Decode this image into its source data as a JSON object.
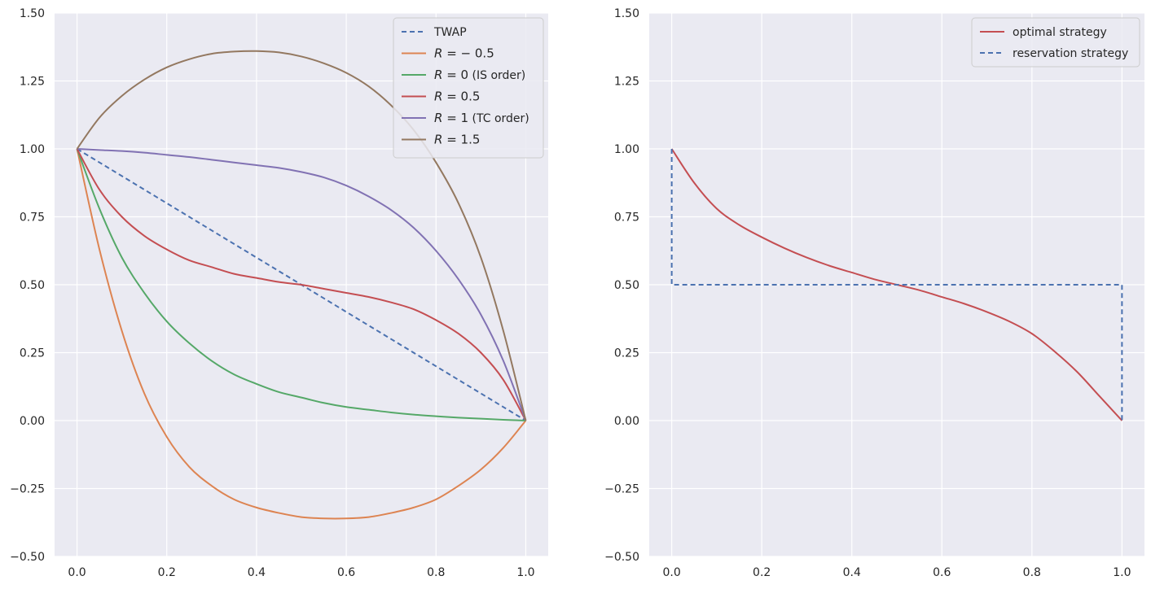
{
  "chart_data": [
    {
      "type": "line",
      "title": "",
      "xlabel": "",
      "ylabel": "",
      "xlim": [
        -0.05,
        1.05
      ],
      "ylim": [
        -0.5,
        1.5
      ],
      "x_ticks": [
        "0.0",
        "0.2",
        "0.4",
        "0.6",
        "0.8",
        "1.0"
      ],
      "y_ticks": [
        "−0.50",
        "−0.25",
        "0.00",
        "0.25",
        "0.50",
        "0.75",
        "1.00",
        "1.25",
        "1.50"
      ],
      "grid": true,
      "background": "#eaeaf2",
      "legend_position": "top-right",
      "x": [
        0.0,
        0.05,
        0.1,
        0.15,
        0.2,
        0.25,
        0.3,
        0.35,
        0.4,
        0.45,
        0.5,
        0.55,
        0.6,
        0.65,
        0.7,
        0.75,
        0.8,
        0.85,
        0.9,
        0.95,
        1.0
      ],
      "series": [
        {
          "name": "TWAP",
          "color": "#4c72b0",
          "dashed": true,
          "values": [
            1.0,
            0.95,
            0.9,
            0.85,
            0.8,
            0.75,
            0.7,
            0.65,
            0.6,
            0.55,
            0.5,
            0.45,
            0.4,
            0.35,
            0.3,
            0.25,
            0.2,
            0.15,
            0.1,
            0.05,
            0.0
          ]
        },
        {
          "name": "R = −0.5",
          "legend_symbol": "R",
          "legend_math": " = − 0.5",
          "legend_suffix": "",
          "color": "#dd8452",
          "dashed": false,
          "values": [
            1.0,
            0.63,
            0.33,
            0.1,
            -0.06,
            -0.17,
            -0.24,
            -0.29,
            -0.32,
            -0.34,
            -0.355,
            -0.36,
            -0.36,
            -0.355,
            -0.34,
            -0.32,
            -0.29,
            -0.24,
            -0.18,
            -0.1,
            0.0
          ]
        },
        {
          "name": "R = 0 (IS order)",
          "legend_symbol": "R",
          "legend_math": " = 0",
          "legend_suffix": " (IS order)",
          "color": "#55a868",
          "dashed": false,
          "values": [
            1.0,
            0.78,
            0.6,
            0.47,
            0.365,
            0.285,
            0.22,
            0.17,
            0.135,
            0.105,
            0.085,
            0.065,
            0.05,
            0.04,
            0.03,
            0.022,
            0.016,
            0.011,
            0.007,
            0.003,
            0.0
          ]
        },
        {
          "name": "R = 0.5",
          "legend_symbol": "R",
          "legend_math": " = 0.5",
          "legend_suffix": "",
          "color": "#c44e52",
          "dashed": false,
          "values": [
            1.0,
            0.85,
            0.75,
            0.68,
            0.63,
            0.59,
            0.565,
            0.54,
            0.525,
            0.51,
            0.5,
            0.485,
            0.47,
            0.455,
            0.435,
            0.41,
            0.37,
            0.32,
            0.25,
            0.15,
            0.0
          ]
        },
        {
          "name": "R = 1 (TC order)",
          "legend_symbol": "R",
          "legend_math": " = 1",
          "legend_suffix": " (TC order)",
          "color": "#8172b3",
          "dashed": false,
          "values": [
            1.0,
            0.996,
            0.992,
            0.986,
            0.978,
            0.97,
            0.96,
            0.95,
            0.94,
            0.93,
            0.915,
            0.895,
            0.865,
            0.825,
            0.775,
            0.71,
            0.625,
            0.52,
            0.39,
            0.22,
            0.0
          ]
        },
        {
          "name": "R = 1.5",
          "legend_symbol": "R",
          "legend_math": " = 1.5",
          "legend_suffix": "",
          "color": "#937860",
          "dashed": false,
          "values": [
            1.0,
            1.115,
            1.195,
            1.255,
            1.3,
            1.33,
            1.35,
            1.358,
            1.36,
            1.355,
            1.34,
            1.315,
            1.28,
            1.23,
            1.16,
            1.07,
            0.95,
            0.8,
            0.6,
            0.33,
            0.0
          ]
        }
      ]
    },
    {
      "type": "line",
      "title": "",
      "xlabel": "",
      "ylabel": "",
      "xlim": [
        -0.05,
        1.05
      ],
      "ylim": [
        -0.5,
        1.5
      ],
      "x_ticks": [
        "0.0",
        "0.2",
        "0.4",
        "0.6",
        "0.8",
        "1.0"
      ],
      "y_ticks": [
        "−0.50",
        "−0.25",
        "0.00",
        "0.25",
        "0.50",
        "0.75",
        "1.00",
        "1.25",
        "1.50"
      ],
      "grid": true,
      "background": "#eaeaf2",
      "legend_position": "top-right",
      "series": [
        {
          "name": "optimal strategy",
          "color": "#c44e52",
          "dashed": false,
          "x": [
            0.0,
            0.05,
            0.1,
            0.15,
            0.2,
            0.25,
            0.3,
            0.35,
            0.4,
            0.45,
            0.5,
            0.55,
            0.6,
            0.65,
            0.7,
            0.75,
            0.8,
            0.85,
            0.9,
            0.95,
            1.0
          ],
          "values": [
            1.0,
            0.875,
            0.78,
            0.72,
            0.675,
            0.635,
            0.6,
            0.57,
            0.545,
            0.52,
            0.5,
            0.48,
            0.455,
            0.43,
            0.4,
            0.365,
            0.32,
            0.255,
            0.18,
            0.09,
            0.0
          ]
        },
        {
          "name": "reservation strategy",
          "color": "#4c72b0",
          "dashed": true,
          "x": [
            0.0,
            0.0,
            1.0,
            1.0
          ],
          "values": [
            1.0,
            0.5,
            0.5,
            0.0
          ]
        }
      ]
    }
  ]
}
